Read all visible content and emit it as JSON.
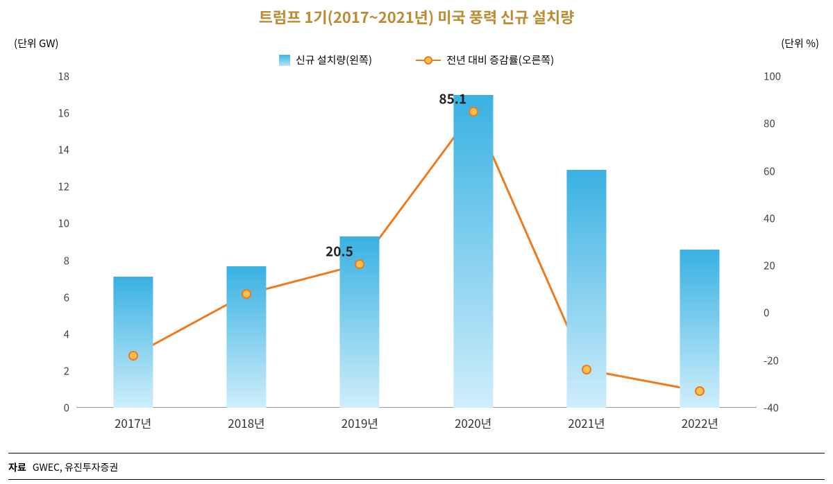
{
  "title": {
    "text": "트럼프 1기(2017~2021년) 미국 풍력 신규 설치량",
    "fontsize": 22,
    "color": "#bd8c32"
  },
  "axis_unit_left": "(단위 GW)",
  "axis_unit_right": "(단위 %)",
  "legend": {
    "bar": {
      "label": "신규 설치량(왼쪽)",
      "swatch_top": "#3bb6e4",
      "swatch_bot": "#b3e4f5"
    },
    "line": {
      "label": "전년 대비 증감률(오른쪽)",
      "color": "#ee7a1e",
      "marker_fill": "#f7c24a",
      "marker_border": "#ee7a1e"
    }
  },
  "chart": {
    "type": "bar+line",
    "background": "#ffffff",
    "categories": [
      "2017년",
      "2018년",
      "2019년",
      "2020년",
      "2021년",
      "2022년"
    ],
    "bars": {
      "values": [
        7.1,
        7.7,
        9.3,
        17.0,
        12.9,
        8.6
      ],
      "width_frac": 0.35,
      "gradient_top": "#39b1e2",
      "gradient_bot": "#cfeefb"
    },
    "line": {
      "values": [
        -18,
        8,
        20.5,
        85.1,
        -24,
        -33
      ],
      "color": "#ee7a1e",
      "width": 3,
      "marker_fill": "#f7c24a",
      "marker_border": "#ee7a1e",
      "labels": {
        "2": "20.5",
        "3": "85.1"
      },
      "label_color": "#222222",
      "label_fontsize": 19
    },
    "y_left": {
      "min": 0,
      "max": 18,
      "ticks": [
        0,
        2,
        4,
        6,
        8,
        10,
        12,
        14,
        16,
        18
      ]
    },
    "y_right": {
      "min": -40,
      "max": 100,
      "ticks": [
        -40,
        -20,
        0,
        20,
        40,
        60,
        80,
        100
      ]
    },
    "tick_color": "#444444",
    "xtick_fontsize": 17
  },
  "footer": {
    "label": "자료",
    "text": "GWEC, 유진투자증권"
  }
}
